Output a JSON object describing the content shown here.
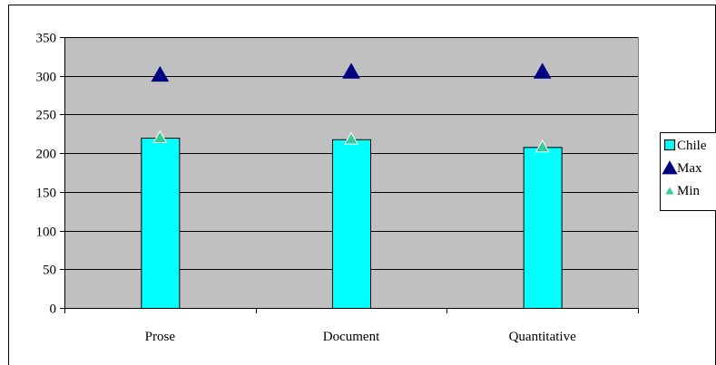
{
  "chart_data": {
    "type": "bar",
    "categories": [
      "Prose",
      "Document",
      "Quantitative"
    ],
    "series": [
      {
        "name": "Chile",
        "kind": "bar",
        "values": [
          220,
          218,
          208
        ],
        "color": "#00ffff"
      },
      {
        "name": "Max",
        "kind": "marker",
        "marker": "triangle",
        "values": [
          301,
          305,
          305
        ],
        "color": "#000080"
      },
      {
        "name": "Min",
        "kind": "marker",
        "marker": "triangle",
        "values": [
          220,
          218,
          208
        ],
        "color": "#33cc99"
      }
    ],
    "ylim": [
      0,
      350
    ],
    "yticks": [
      0,
      50,
      100,
      150,
      200,
      250,
      300,
      350
    ],
    "ytick_labels": [
      "0",
      "50",
      "100",
      "150",
      "200",
      "250",
      "300",
      "350"
    ],
    "grid": true,
    "plot_background": "#c0c0c0",
    "legend_position": "right"
  }
}
